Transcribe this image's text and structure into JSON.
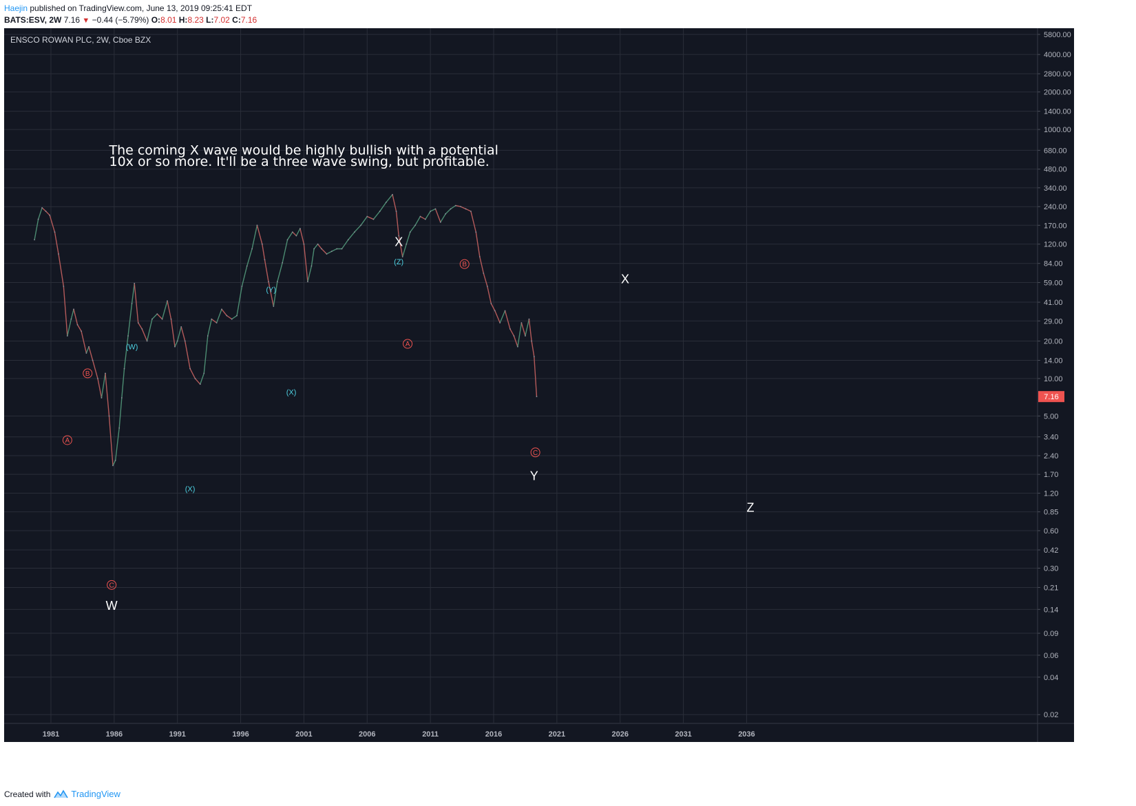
{
  "header": {
    "author": "Haejin",
    "published_text": " published on TradingView.com, June 13, 2019 09:25:41 EDT",
    "symbol": "BATS:ESV, 2W",
    "last": "7.16",
    "change": "−0.44 (−5.79%)",
    "o_label": "O:",
    "o_val": "8.01",
    "h_label": "H:",
    "h_val": "8.23",
    "l_label": "L:",
    "l_val": "7.02",
    "c_label": "C:",
    "c_val": "7.16"
  },
  "footer": {
    "created_with": "Created with",
    "brand": "TradingView"
  },
  "colors": {
    "background": "#131722",
    "grid": "#2a2e39",
    "text": "#b2b5be",
    "up": "#4c8c72",
    "down": "#b45a5a",
    "price_label": "#ef5350",
    "wave_red": "#ef5350",
    "wave_cyan": "#4dd0e1",
    "white": "#ffffff"
  },
  "chart_data": {
    "type": "line",
    "title": "ENSCO ROWAN PLC, 2W, Cboe BZX",
    "y_scale": "log",
    "ylim": [
      0.017,
      6500
    ],
    "xlim": [
      1977.3,
      2059.0
    ],
    "x_ticks": [
      "1981",
      "1986",
      "1991",
      "1996",
      "2001",
      "2006",
      "2011",
      "2016",
      "2021",
      "2026",
      "2031",
      "2036"
    ],
    "y_ticks": [
      "5800.00",
      "4000.00",
      "2800.00",
      "2000.00",
      "1400.00",
      "1000.00",
      "680.00",
      "480.00",
      "340.00",
      "240.00",
      "170.00",
      "120.00",
      "84.00",
      "59.00",
      "41.00",
      "29.00",
      "20.00",
      "14.00",
      "10.00",
      "7.16",
      "5.00",
      "3.40",
      "2.40",
      "1.70",
      "1.20",
      "0.85",
      "0.60",
      "0.42",
      "0.30",
      "0.21",
      "0.14",
      "0.09",
      "0.06",
      "0.04",
      "0.02"
    ],
    "last_price": "7.16",
    "series": [
      {
        "x": [
          1979.7,
          1980.0,
          1980.3,
          1980.6,
          1980.9,
          1981.3,
          1981.6,
          1982.0,
          1982.3,
          1982.6,
          1982.8,
          1983.1,
          1983.4,
          1983.8,
          1984.0,
          1984.3,
          1984.7,
          1985.0,
          1985.3,
          1985.6,
          1985.9,
          1986.1,
          1986.4,
          1986.6,
          1986.8,
          1987.1,
          1987.4,
          1987.6,
          1987.9,
          1988.2,
          1988.6,
          1989.0,
          1989.4,
          1989.8,
          1990.2,
          1990.5,
          1990.8,
          1991.0,
          1991.3,
          1991.6,
          1992.0,
          1992.4,
          1992.8,
          1993.1,
          1993.4,
          1993.7,
          1994.1,
          1994.5,
          1994.9,
          1995.3,
          1995.7,
          1996.1,
          1996.5,
          1996.9,
          1997.3,
          1997.7,
          1997.9,
          1998.2,
          1998.6,
          1998.9,
          1999.3,
          1999.7,
          2000.1,
          2000.4,
          2000.7,
          2001.0,
          2001.3,
          2001.6,
          2001.8,
          2002.1,
          2002.4,
          2002.8,
          2003.2,
          2003.6,
          2004.0,
          2004.5,
          2005.0,
          2005.5,
          2006.0,
          2006.5,
          2007.0,
          2007.5,
          2008.0,
          2008.3,
          2008.5,
          2008.8,
          2009.1,
          2009.4,
          2009.8,
          2010.2,
          2010.6,
          2011.0,
          2011.4,
          2011.8,
          2012.2,
          2012.6,
          2013.0,
          2013.4,
          2013.8,
          2014.2,
          2014.6,
          2014.9,
          2015.2,
          2015.5,
          2015.8,
          2016.1,
          2016.5,
          2016.9,
          2017.3,
          2017.6,
          2017.9,
          2018.2,
          2018.5,
          2018.8,
          2019.0,
          2019.2,
          2019.4
        ],
        "values": [
          130,
          190,
          235,
          220,
          205,
          150,
          100,
          55,
          22,
          30,
          36,
          27,
          24,
          16,
          18,
          14,
          10,
          7,
          11,
          5,
          2,
          2.2,
          4,
          7,
          12,
          22,
          40,
          58,
          28,
          25,
          20,
          30,
          33,
          30,
          42,
          30,
          18,
          20,
          26,
          20,
          12,
          10,
          9,
          11,
          22,
          30,
          28,
          36,
          32,
          30,
          32,
          55,
          80,
          110,
          170,
          120,
          90,
          60,
          38,
          60,
          85,
          130,
          150,
          140,
          160,
          120,
          60,
          80,
          110,
          120,
          110,
          100,
          105,
          110,
          110,
          130,
          150,
          170,
          200,
          190,
          220,
          260,
          300,
          220,
          140,
          95,
          120,
          150,
          170,
          200,
          190,
          220,
          230,
          180,
          210,
          230,
          245,
          240,
          230,
          220,
          150,
          95,
          70,
          55,
          40,
          35,
          28,
          35,
          25,
          22,
          18,
          28,
          22,
          30,
          20,
          15,
          7.16
        ]
      }
    ],
    "annotations": [
      {
        "text": "The coming X wave would be highly bullish with a potential",
        "x": 1985.6,
        "y": 630
      },
      {
        "text": "10x or so more. It'll be a three wave swing, but profitable.",
        "x": 1985.6,
        "y": 510
      },
      {
        "text": "A",
        "x": 1982.3,
        "y": 3.2,
        "kind": "circle",
        "color": "red"
      },
      {
        "text": "B",
        "x": 1983.9,
        "y": 11.0,
        "kind": "circle",
        "color": "red"
      },
      {
        "text": "C",
        "x": 1985.8,
        "y": 0.22,
        "kind": "circle",
        "color": "red"
      },
      {
        "text": "W",
        "x": 1985.8,
        "y": 0.15,
        "kind": "big"
      },
      {
        "text": "(W)",
        "x": 1987.4,
        "y": 18.0,
        "kind": "cyan"
      },
      {
        "text": "(X)",
        "x": 1992.0,
        "y": 1.3,
        "kind": "cyan"
      },
      {
        "text": "(Y)",
        "x": 1998.4,
        "y": 52.0,
        "kind": "cyan"
      },
      {
        "text": "(X)",
        "x": 2000.0,
        "y": 7.8,
        "kind": "cyan"
      },
      {
        "text": "X",
        "x": 2008.5,
        "y": 125,
        "kind": "big"
      },
      {
        "text": "(Z)",
        "x": 2008.5,
        "y": 87,
        "kind": "cyan"
      },
      {
        "text": "A",
        "x": 2009.2,
        "y": 19.0,
        "kind": "circle",
        "color": "red"
      },
      {
        "text": "B",
        "x": 2013.7,
        "y": 83,
        "kind": "circle",
        "color": "red"
      },
      {
        "text": "X",
        "x": 2026.4,
        "y": 63,
        "kind": "big"
      },
      {
        "text": "C",
        "x": 2019.3,
        "y": 2.55,
        "kind": "circle",
        "color": "red"
      },
      {
        "text": "Y",
        "x": 2019.2,
        "y": 1.65,
        "kind": "big"
      },
      {
        "text": "Z",
        "x": 2036.3,
        "y": 0.92,
        "kind": "big"
      }
    ]
  }
}
